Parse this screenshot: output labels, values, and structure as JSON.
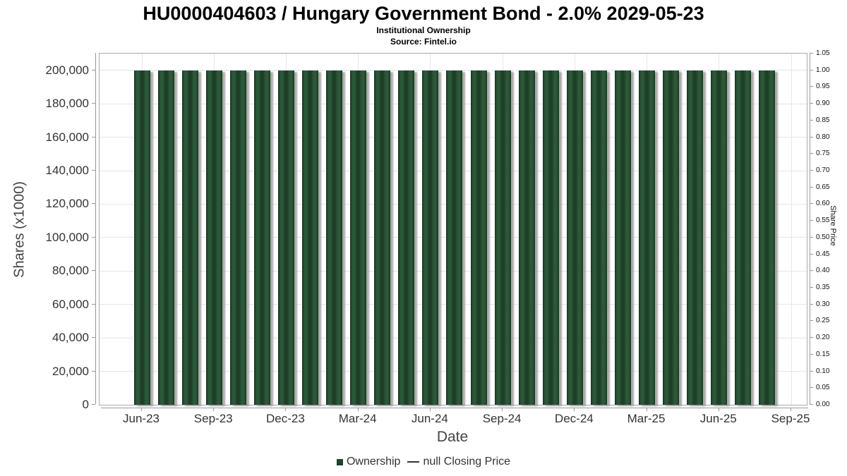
{
  "header": {
    "title": "HU0000404603 / Hungary Government Bond - 2.0% 2029-05-23",
    "subtitle": "Institutional Ownership",
    "source": "Source: Fintel.io"
  },
  "chart_data": {
    "type": "bar",
    "title": "HU0000404603 / Hungary Government Bond - 2.0% 2029-05-23",
    "subtitle": "Institutional Ownership",
    "source": "Source: Fintel.io",
    "xlabel": "Date",
    "ylabel_left": "Shares (x1000)",
    "ylabel_right": "Share Price",
    "grid": true,
    "legend_position": "bottom",
    "categories": [
      "Jun-23",
      "Jul-23",
      "Aug-23",
      "Sep-23",
      "Oct-23",
      "Nov-23",
      "Dec-23",
      "Jan-24",
      "Feb-24",
      "Mar-24",
      "Apr-24",
      "May-24",
      "Jun-24",
      "Jul-24",
      "Aug-24",
      "Sep-24",
      "Oct-24",
      "Nov-24",
      "Dec-24",
      "Jan-25",
      "Feb-25",
      "Mar-25",
      "Apr-25",
      "May-25",
      "Jun-25",
      "Jul-25",
      "Aug-25"
    ],
    "series": [
      {
        "name": "Ownership",
        "type": "bar",
        "color": "#23492e",
        "values": [
          200000,
          200000,
          200000,
          200000,
          200000,
          200000,
          200000,
          200000,
          200000,
          200000,
          200000,
          200000,
          200000,
          200000,
          200000,
          200000,
          200000,
          200000,
          200000,
          200000,
          200000,
          200000,
          200000,
          200000,
          200000,
          200000,
          200000
        ]
      },
      {
        "name": "null Closing Price",
        "type": "line",
        "color": "#333333",
        "values": []
      }
    ],
    "x_tick_labels": [
      "Jun-23",
      "Sep-23",
      "Dec-23",
      "Mar-24",
      "Jun-24",
      "Sep-24",
      "Dec-24",
      "Mar-25",
      "Jun-25",
      "Sep-25"
    ],
    "x_tick_month_positions": [
      0,
      3,
      6,
      9,
      12,
      15,
      18,
      21,
      24,
      27
    ],
    "y_left_tick_labels": [
      "0",
      "20,000",
      "40,000",
      "60,000",
      "80,000",
      "100,000",
      "120,000",
      "140,000",
      "160,000",
      "180,000",
      "200,000"
    ],
    "y_left_tick_values": [
      0,
      20000,
      40000,
      60000,
      80000,
      100000,
      120000,
      140000,
      160000,
      180000,
      200000
    ],
    "y_right_tick_labels": [
      "0.00",
      "0.05",
      "0.10",
      "0.15",
      "0.20",
      "0.25",
      "0.30",
      "0.35",
      "0.40",
      "0.45",
      "0.50",
      "0.55",
      "0.60",
      "0.65",
      "0.70",
      "0.75",
      "0.80",
      "0.85",
      "0.90",
      "0.95",
      "1.00",
      "1.05"
    ],
    "ylim_left": [
      0,
      210000
    ],
    "ylim_right": [
      0,
      1.05
    ]
  },
  "legend": {
    "items": [
      {
        "label": "Ownership",
        "marker": "square",
        "color": "#1e4429"
      },
      {
        "label": "null Closing Price",
        "marker": "line",
        "color": "#333333"
      }
    ]
  }
}
